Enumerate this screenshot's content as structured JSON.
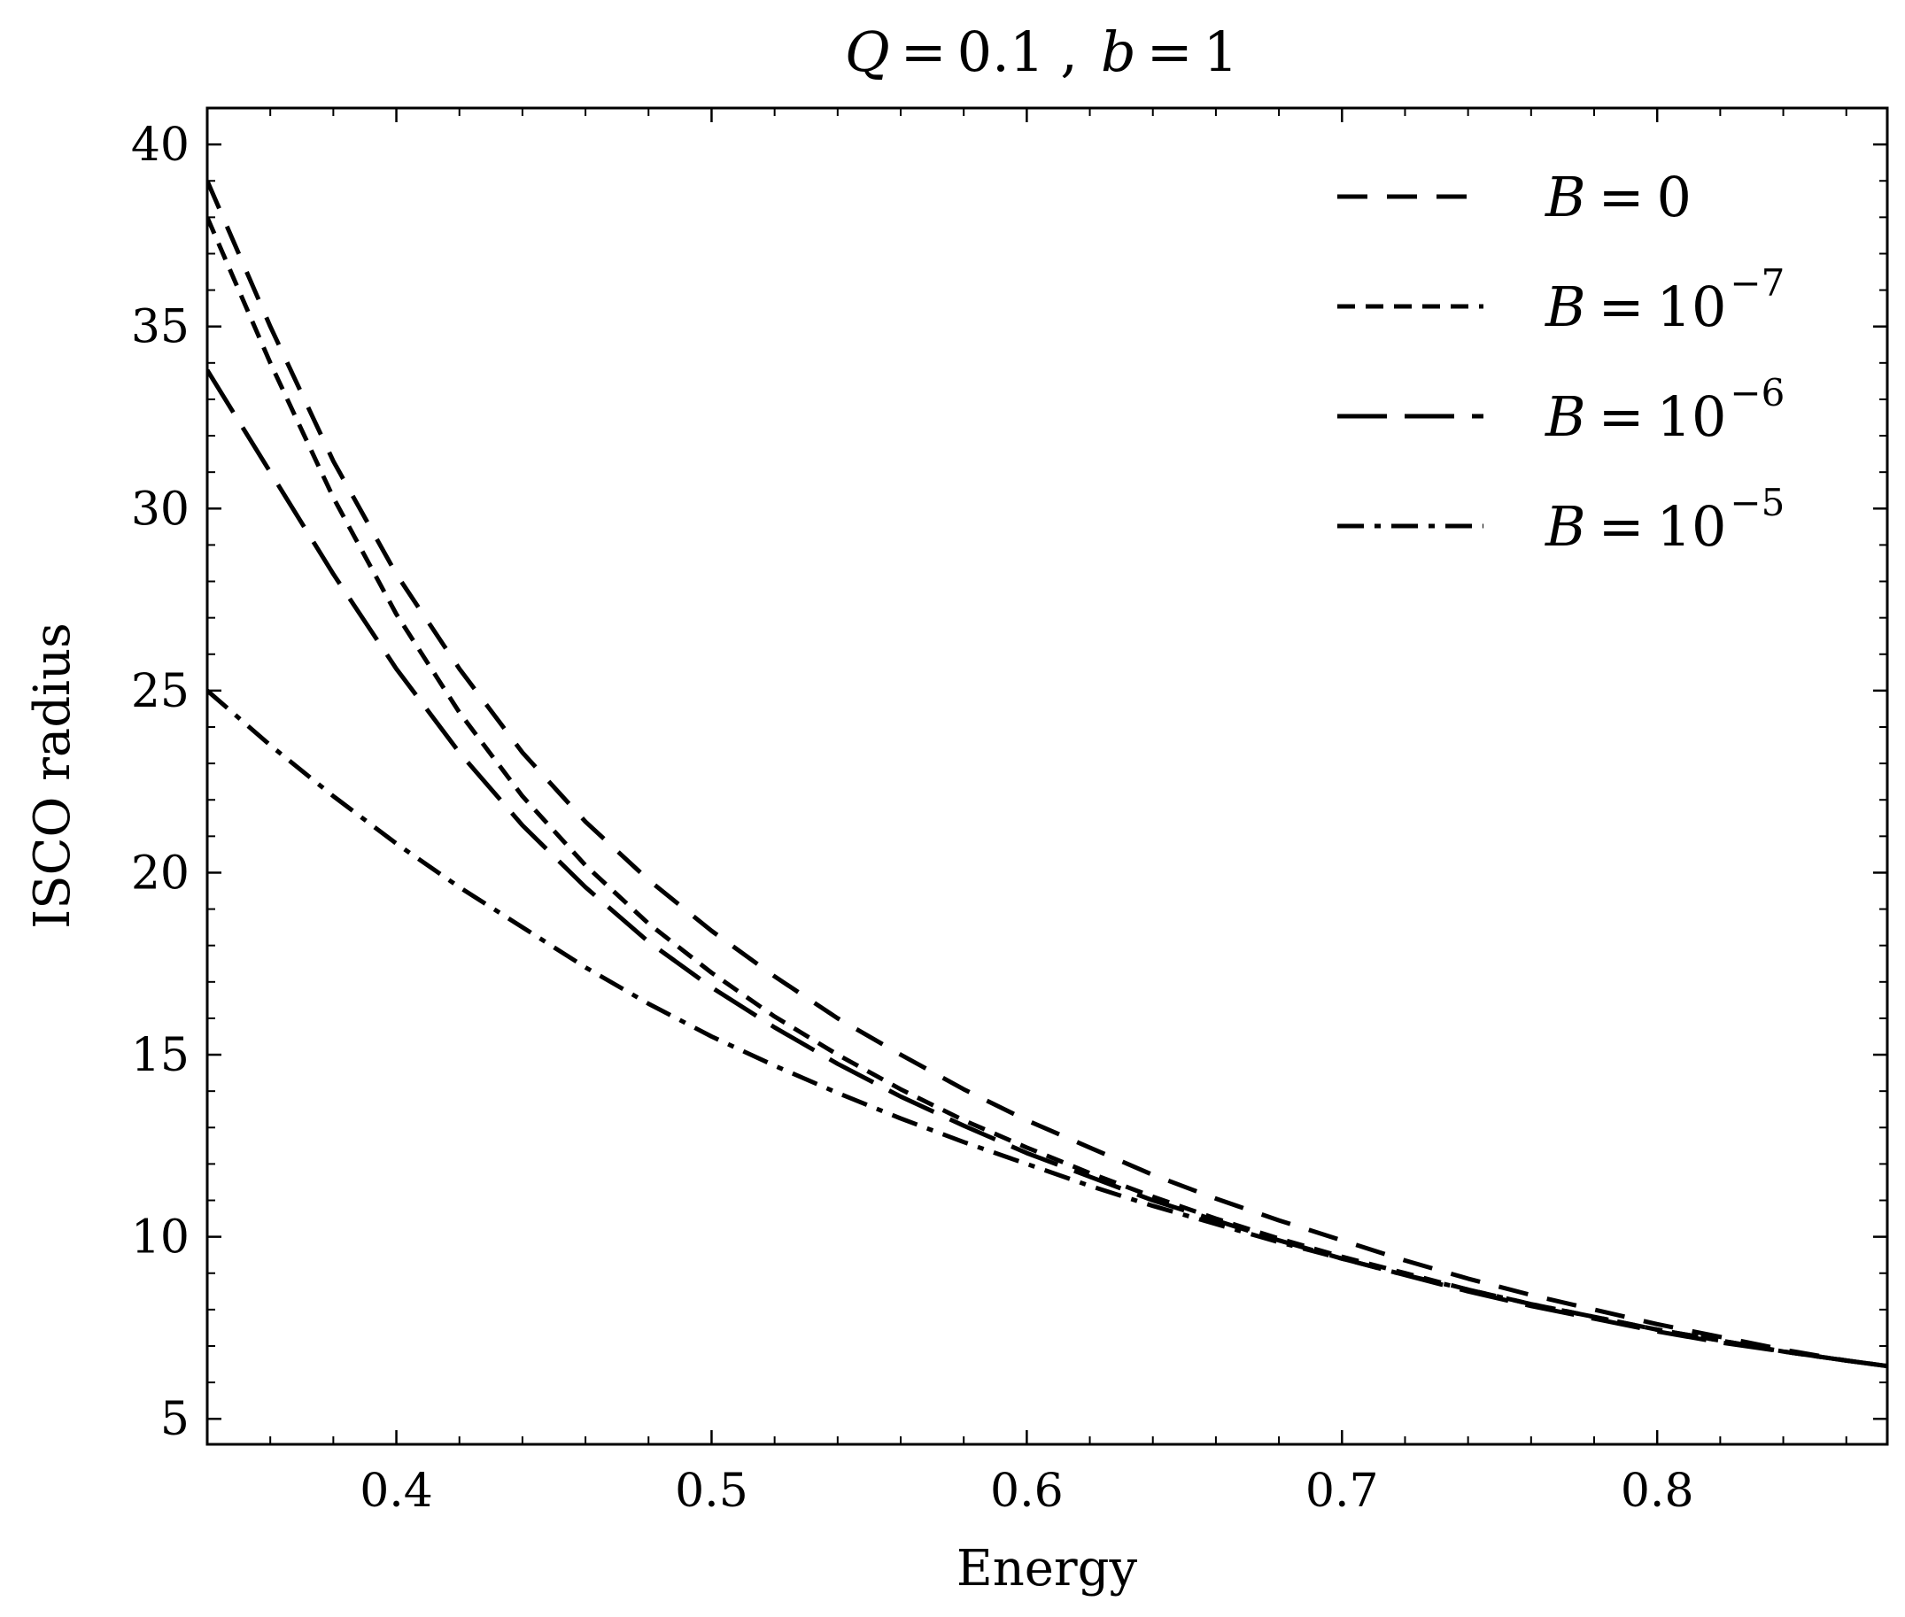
{
  "chart_data": {
    "type": "line",
    "title": "Q = 0.1 , b = 1",
    "title_parts": {
      "q_var": "Q",
      "q_val": "0.1",
      "sep": ",",
      "b_var": "b",
      "b_val": "1",
      "eq": "="
    },
    "xlabel": "Energy",
    "ylabel": "ISCO radius",
    "xlim": [
      0.34,
      0.873
    ],
    "ylim": [
      4.3,
      41.0
    ],
    "xticks": [
      0.4,
      0.5,
      0.6,
      0.7,
      0.8
    ],
    "xtick_labels": [
      "0.4",
      "0.5",
      "0.6",
      "0.7",
      "0.8"
    ],
    "yticks": [
      5,
      10,
      15,
      20,
      25,
      30,
      35,
      40
    ],
    "ytick_labels": [
      "5",
      "10",
      "15",
      "20",
      "25",
      "30",
      "35",
      "40"
    ],
    "grid": false,
    "legend_position": "top-right",
    "line_color": "#000000",
    "series": [
      {
        "name": "B = 0",
        "label_main": "B = 0",
        "label_exp": "",
        "dash": "wide-dash",
        "x": [
          0.34,
          0.36,
          0.38,
          0.4,
          0.42,
          0.44,
          0.46,
          0.48,
          0.5,
          0.52,
          0.54,
          0.56,
          0.58,
          0.6,
          0.62,
          0.64,
          0.66,
          0.68,
          0.7,
          0.72,
          0.74,
          0.76,
          0.78,
          0.8,
          0.82,
          0.84,
          0.86,
          0.873
        ],
        "y": [
          39.0,
          35.0,
          31.3,
          28.2,
          25.6,
          23.3,
          21.4,
          19.8,
          18.4,
          17.15,
          16.0,
          15.0,
          14.05,
          13.2,
          12.45,
          11.7,
          11.05,
          10.45,
          9.9,
          9.35,
          8.85,
          8.4,
          8.0,
          7.6,
          7.25,
          6.9,
          6.6,
          6.45
        ]
      },
      {
        "name": "B = 10^-7",
        "label_main": "B = 10",
        "label_exp": "−7",
        "dash": "short-dash",
        "x": [
          0.34,
          0.36,
          0.38,
          0.4,
          0.42,
          0.44,
          0.46,
          0.48,
          0.5,
          0.52,
          0.54,
          0.56,
          0.58,
          0.6,
          0.62,
          0.64,
          0.66,
          0.68,
          0.7,
          0.72,
          0.74,
          0.76,
          0.78,
          0.8,
          0.82,
          0.84,
          0.86,
          0.873
        ],
        "y": [
          38.0,
          34.0,
          30.3,
          27.1,
          24.4,
          22.1,
          20.2,
          18.6,
          17.25,
          16.05,
          15.0,
          14.05,
          13.2,
          12.45,
          11.75,
          11.1,
          10.5,
          9.95,
          9.45,
          9.0,
          8.55,
          8.15,
          7.8,
          7.45,
          7.15,
          6.85,
          6.6,
          6.45
        ]
      },
      {
        "name": "B = 10^-6",
        "label_main": "B = 10",
        "label_exp": "−6",
        "dash": "long-dash",
        "x": [
          0.34,
          0.36,
          0.38,
          0.4,
          0.42,
          0.44,
          0.46,
          0.48,
          0.5,
          0.52,
          0.54,
          0.56,
          0.58,
          0.6,
          0.62,
          0.64,
          0.66,
          0.68,
          0.7,
          0.72,
          0.74,
          0.76,
          0.78,
          0.8,
          0.82,
          0.84,
          0.86,
          0.873
        ],
        "y": [
          33.8,
          31.0,
          28.2,
          25.6,
          23.3,
          21.3,
          19.6,
          18.1,
          16.85,
          15.75,
          14.75,
          13.85,
          13.05,
          12.3,
          11.65,
          11.0,
          10.45,
          9.9,
          9.4,
          8.95,
          8.5,
          8.1,
          7.75,
          7.4,
          7.1,
          6.85,
          6.6,
          6.45
        ]
      },
      {
        "name": "B = 10^-5",
        "label_main": "B = 10",
        "label_exp": "−5",
        "dash": "dash-dot",
        "x": [
          0.34,
          0.36,
          0.38,
          0.4,
          0.42,
          0.44,
          0.46,
          0.48,
          0.5,
          0.52,
          0.54,
          0.56,
          0.58,
          0.6,
          0.62,
          0.64,
          0.66,
          0.68,
          0.7,
          0.72,
          0.74,
          0.76,
          0.78,
          0.8,
          0.82,
          0.84,
          0.86,
          0.873
        ],
        "y": [
          25.0,
          23.5,
          22.1,
          20.8,
          19.6,
          18.5,
          17.4,
          16.4,
          15.5,
          14.7,
          13.95,
          13.25,
          12.6,
          12.0,
          11.4,
          10.85,
          10.35,
          9.85,
          9.4,
          8.95,
          8.55,
          8.15,
          7.8,
          7.45,
          7.15,
          6.85,
          6.6,
          6.45
        ]
      }
    ]
  }
}
